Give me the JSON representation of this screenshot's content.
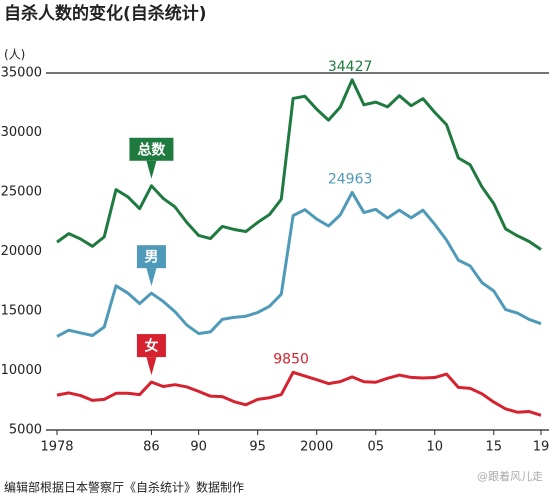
{
  "chart_data": {
    "type": "line",
    "title": "自杀人数的变化(自杀统计)",
    "y_unit": "(人)",
    "source": "编辑部根据日本警察厅《自杀统计》数据制作",
    "watermark": "@跟着风儿走",
    "x": [
      1978,
      1979,
      1980,
      1981,
      1982,
      1983,
      1984,
      1985,
      1986,
      1987,
      1988,
      1989,
      1990,
      1991,
      1992,
      1993,
      1994,
      1995,
      1996,
      1997,
      1998,
      1999,
      2000,
      2001,
      2002,
      2003,
      2004,
      2005,
      2006,
      2007,
      2008,
      2009,
      2010,
      2011,
      2012,
      2013,
      2014,
      2015,
      2016,
      2017,
      2018,
      2019
    ],
    "xlim": [
      1978,
      2019
    ],
    "xticks": [
      1978,
      {
        "value": 1986,
        "label": "86"
      },
      {
        "value": 1990,
        "label": "90"
      },
      {
        "value": 1995,
        "label": "95"
      },
      2000,
      {
        "value": 2005,
        "label": "05"
      },
      {
        "value": 2010,
        "label": "10"
      },
      {
        "value": 2015,
        "label": "15"
      },
      {
        "value": 2019,
        "label": "19"
      }
    ],
    "ylim": [
      5000,
      35000
    ],
    "yticks": [
      5000,
      10000,
      15000,
      20000,
      25000,
      30000,
      35000
    ],
    "grid": false,
    "series": [
      {
        "name": "总数",
        "color": "#1f7a3f",
        "values": [
          20788,
          21503,
          21048,
          20434,
          21228,
          25202,
          24596,
          23599,
          25524,
          24460,
          23742,
          22436,
          21346,
          21084,
          22104,
          21851,
          21679,
          22445,
          23104,
          24391,
          32863,
          33048,
          31957,
          31042,
          32143,
          34427,
          32325,
          32552,
          32155,
          33093,
          32249,
          32845,
          31690,
          30651,
          27858,
          27283,
          25427,
          24025,
          21897,
          21321,
          20840,
          20169
        ]
      },
      {
        "name": "男",
        "color": "#4f9ab8",
        "values": [
          12859,
          13386,
          13155,
          12942,
          13654,
          17116,
          16508,
          15624,
          16497,
          15802,
          14934,
          13818,
          13102,
          13242,
          14296,
          14468,
          14560,
          14874,
          15393,
          16416,
          23013,
          23512,
          22727,
          22144,
          23080,
          24963,
          23272,
          23540,
          22813,
          23478,
          22831,
          23472,
          22283,
          20955,
          19273,
          18787,
          17386,
          16681,
          15121,
          14826,
          14290,
          13937
        ]
      },
      {
        "name": "女",
        "color": "#d6222f",
        "values": [
          7929,
          8117,
          7893,
          7492,
          7574,
          8086,
          8088,
          7975,
          9027,
          8658,
          8808,
          8618,
          8244,
          7842,
          7808,
          7383,
          7119,
          7571,
          7711,
          7975,
          9850,
          9536,
          9230,
          8898,
          9063,
          9464,
          9053,
          9012,
          9342,
          9615,
          9418,
          9373,
          9407,
          9696,
          8585,
          8496,
          8041,
          7344,
          6776,
          6495,
          6550,
          6232
        ]
      }
    ]
  }
}
